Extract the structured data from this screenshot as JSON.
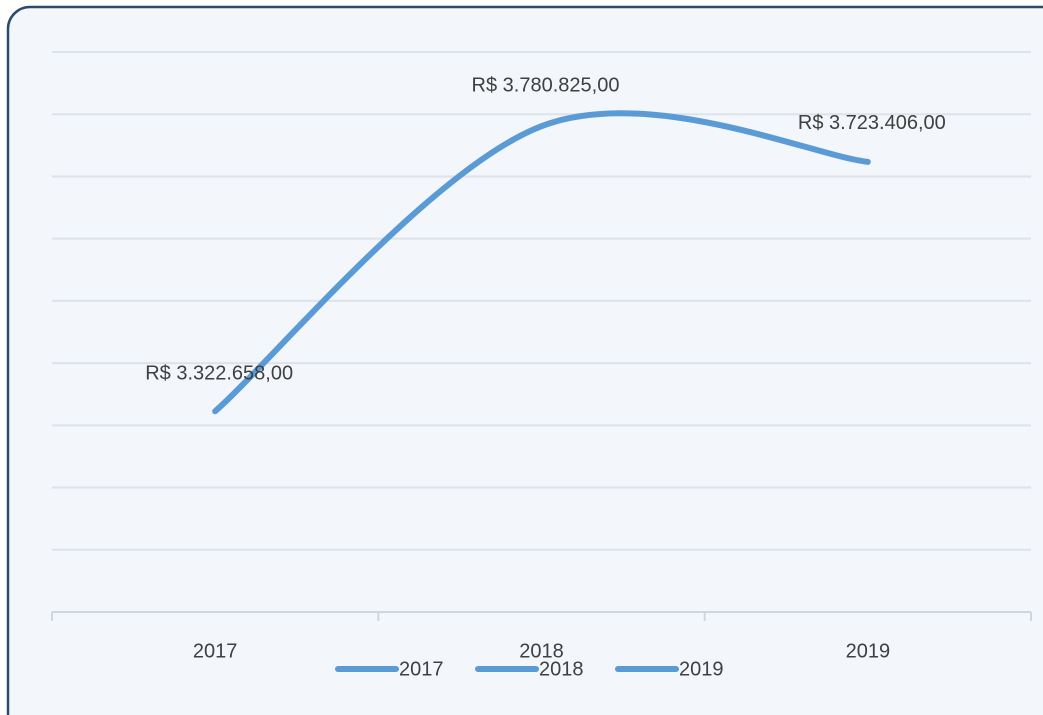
{
  "chart_data": {
    "type": "line",
    "categories": [
      "2017",
      "2018",
      "2019"
    ],
    "values": [
      3322658,
      3780825,
      3723406
    ],
    "value_labels": [
      "R$ 3.322.658,00",
      "R$ 3.780.825,00",
      "R$ 3.723.406,00"
    ],
    "color": "#5b9bd5",
    "smooth": true,
    "ylim": [
      3000000,
      3900000
    ],
    "yticks": [
      3000000,
      3100000,
      3200000,
      3300000,
      3400000,
      3500000,
      3600000,
      3700000,
      3800000,
      3900000
    ],
    "grid": true,
    "legend": [
      "2017",
      "2018",
      "2019"
    ],
    "legend_position": "bottom"
  }
}
